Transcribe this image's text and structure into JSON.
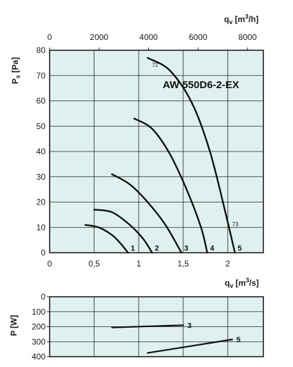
{
  "chart_data": [
    {
      "type": "line",
      "title": "AW 550D6-2-EX",
      "xlabel": "qv [m3/s]",
      "ylabel": "Ps [Pa]",
      "xlim": [
        0,
        2.4
      ],
      "ylim": [
        0,
        80
      ],
      "x_ticks": [
        "0",
        "0,5",
        "1",
        "1,5",
        "2"
      ],
      "y_ticks": [
        "0",
        "10",
        "20",
        "30",
        "40",
        "50",
        "60",
        "70",
        "80"
      ],
      "secondary_x": {
        "label": "qv [m3/h]",
        "ticks": [
          "0",
          "2000",
          "4000",
          "6000",
          "8000"
        ]
      },
      "grid": true,
      "series": [
        {
          "name": "1",
          "x": [
            0.4,
            0.55,
            0.7,
            0.8,
            0.88
          ],
          "y": [
            11,
            10,
            7,
            3.5,
            0
          ]
        },
        {
          "name": "2",
          "x": [
            0.5,
            0.7,
            0.9,
            1.05,
            1.15
          ],
          "y": [
            17,
            16,
            11,
            5.5,
            0
          ]
        },
        {
          "name": "3",
          "x": [
            0.7,
            0.9,
            1.1,
            1.3,
            1.48
          ],
          "y": [
            31,
            27,
            20,
            11,
            0
          ]
        },
        {
          "name": "4",
          "x": [
            0.95,
            1.15,
            1.35,
            1.55,
            1.7,
            1.77
          ],
          "y": [
            53,
            49,
            39,
            24,
            10,
            0
          ]
        },
        {
          "name": "5",
          "x": [
            1.1,
            1.35,
            1.6,
            1.8,
            1.98,
            2.08
          ],
          "y": [
            77,
            72,
            59,
            40,
            15,
            0
          ]
        }
      ],
      "annotations": [
        {
          "text": "72",
          "x": 1.15,
          "y": 73.5
        },
        {
          "text": "73",
          "x": 2.05,
          "y": 10.5
        }
      ]
    },
    {
      "type": "line",
      "xlabel": "",
      "ylabel": "P [W]",
      "xlim": [
        0,
        2.4
      ],
      "ylim": [
        400,
        0
      ],
      "y_ticks": [
        "0",
        "100",
        "200",
        "300",
        "400"
      ],
      "grid": true,
      "series": [
        {
          "name": "3",
          "x": [
            0.7,
            1.5
          ],
          "y": [
            205,
            190
          ]
        },
        {
          "name": "5",
          "x": [
            1.1,
            2.05
          ],
          "y": [
            375,
            285
          ]
        }
      ]
    }
  ],
  "labels": {
    "secondary_unit": "qv [m3/h]",
    "primary_unit": "qv [m3/s]",
    "pressure_axis": "Ps [Pa]",
    "power_axis": "P [W]"
  },
  "colors": {
    "plot_bg": "#dff1ef",
    "line": "#111111",
    "grid": "#222222"
  }
}
